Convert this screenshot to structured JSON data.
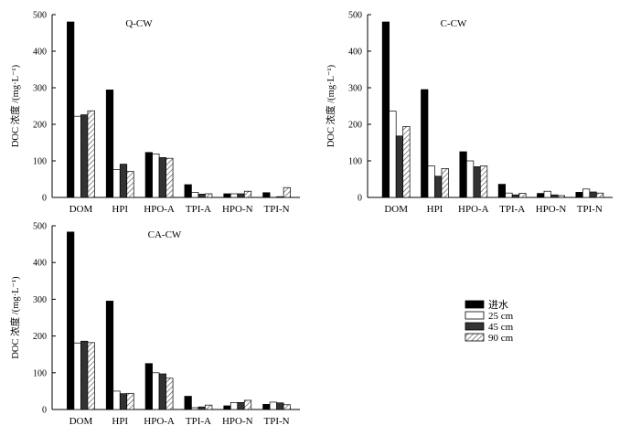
{
  "legend": {
    "series_names": [
      "进水",
      "25 cm",
      "45 cm",
      "90 cm"
    ],
    "styles": [
      "solid-black",
      "white",
      "dark-gray",
      "diagonal-hatch"
    ]
  },
  "colors": {
    "influent": "#000000",
    "cm25": "#ffffff",
    "cm45": "#333333",
    "hatch": "#444444",
    "axis": "#000000"
  },
  "chart_data": [
    {
      "type": "bar",
      "title": "Q-CW",
      "ylabel": "DOC 浓度 /(mg·L⁻¹)",
      "xlabel": "",
      "ylim": [
        0,
        500
      ],
      "yticks": [
        0,
        100,
        200,
        300,
        400,
        500
      ],
      "categories": [
        "DOM",
        "HPI",
        "HPO-A",
        "TPI-A",
        "HPO-N",
        "TPI-N"
      ],
      "series": [
        {
          "name": "进水",
          "values": [
            480,
            294,
            123,
            35,
            10,
            13
          ]
        },
        {
          "name": "25 cm",
          "values": [
            222,
            76,
            119,
            14,
            10,
            0
          ]
        },
        {
          "name": "45 cm",
          "values": [
            226,
            91,
            109,
            9,
            10,
            2
          ]
        },
        {
          "name": "90 cm",
          "values": [
            237,
            71,
            107,
            10,
            17,
            27
          ]
        }
      ]
    },
    {
      "type": "bar",
      "title": "C-CW",
      "ylabel": "DOC 浓度 /(mg·L⁻¹)",
      "xlabel": "",
      "ylim": [
        0,
        500
      ],
      "yticks": [
        0,
        100,
        200,
        300,
        400,
        500
      ],
      "categories": [
        "DOM",
        "HPI",
        "HPO-A",
        "TPI-A",
        "HPO-N",
        "TPI-N"
      ],
      "series": [
        {
          "name": "进水",
          "values": [
            480,
            295,
            125,
            36,
            11,
            14
          ]
        },
        {
          "name": "25 cm",
          "values": [
            236,
            86,
            100,
            12,
            17,
            23
          ]
        },
        {
          "name": "45 cm",
          "values": [
            168,
            58,
            84,
            7,
            7,
            15
          ]
        },
        {
          "name": "90 cm",
          "values": [
            194,
            79,
            86,
            11,
            5,
            12
          ]
        }
      ]
    },
    {
      "type": "bar",
      "title": "CA-CW",
      "ylabel": "DOC 浓度 /(mg·L⁻¹)",
      "xlabel": "",
      "ylim": [
        0,
        500
      ],
      "yticks": [
        0,
        100,
        200,
        300,
        400,
        500
      ],
      "categories": [
        "DOM",
        "HPI",
        "HPO-A",
        "TPI-A",
        "HPO-N",
        "TPI-N"
      ],
      "series": [
        {
          "name": "进水",
          "values": [
            483,
            295,
            125,
            36,
            10,
            14
          ]
        },
        {
          "name": "25 cm",
          "values": [
            181,
            50,
            100,
            5,
            19,
            20
          ]
        },
        {
          "name": "45 cm",
          "values": [
            186,
            43,
            97,
            7,
            19,
            18
          ]
        },
        {
          "name": "90 cm",
          "values": [
            182,
            44,
            85,
            12,
            25,
            13
          ]
        }
      ]
    }
  ]
}
